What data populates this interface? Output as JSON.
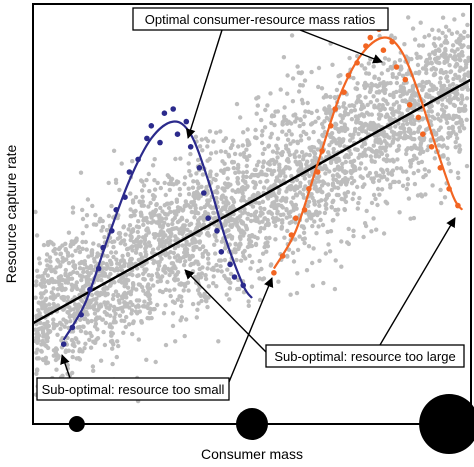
{
  "chart_data": {
    "type": "scatter",
    "title": "",
    "xlabel": "Consumer mass",
    "ylabel": "Resource capture rate",
    "xlim": [
      0,
      10
    ],
    "ylim": [
      0,
      10
    ],
    "axis_ticks": false,
    "grid": false,
    "legend": "none",
    "background_cloud": {
      "color": "#bdbdbd",
      "description_points": 3200,
      "trend": {
        "slope": 0.58,
        "intercept": 2.4,
        "spread": 1.6
      }
    },
    "trend_line": {
      "color": "#000000",
      "points": [
        [
          0,
          2.4
        ],
        [
          10,
          8.2
        ]
      ]
    },
    "series": [
      {
        "color": "#2b2a8c",
        "curve": [
          [
            0.7,
            2.0
          ],
          [
            1.2,
            2.9
          ],
          [
            1.7,
            4.4
          ],
          [
            2.2,
            5.8
          ],
          [
            2.7,
            6.8
          ],
          [
            3.2,
            7.2
          ],
          [
            3.6,
            6.9
          ],
          [
            4.0,
            5.8
          ],
          [
            4.4,
            4.4
          ],
          [
            4.8,
            3.3
          ],
          [
            5.0,
            3.0
          ]
        ],
        "points": [
          [
            0.7,
            1.9
          ],
          [
            0.9,
            2.3
          ],
          [
            1.1,
            2.6
          ],
          [
            1.3,
            3.2
          ],
          [
            1.5,
            3.7
          ],
          [
            1.6,
            4.2
          ],
          [
            1.8,
            4.6
          ],
          [
            1.9,
            5.1
          ],
          [
            2.1,
            5.4
          ],
          [
            2.2,
            6.0
          ],
          [
            2.4,
            6.3
          ],
          [
            2.6,
            6.8
          ],
          [
            2.7,
            7.1
          ],
          [
            2.9,
            6.7
          ],
          [
            3.0,
            7.4
          ],
          [
            3.2,
            7.5
          ],
          [
            3.3,
            6.9
          ],
          [
            3.5,
            7.2
          ],
          [
            3.6,
            6.6
          ],
          [
            3.8,
            6.1
          ],
          [
            3.9,
            5.5
          ],
          [
            4.0,
            4.9
          ],
          [
            4.2,
            4.6
          ],
          [
            4.3,
            4.1
          ],
          [
            4.5,
            3.8
          ],
          [
            4.6,
            3.5
          ],
          [
            4.8,
            3.3
          ]
        ]
      },
      {
        "color": "#f26522",
        "curve": [
          [
            5.5,
            3.7
          ],
          [
            6.0,
            4.6
          ],
          [
            6.5,
            6.2
          ],
          [
            7.0,
            7.8
          ],
          [
            7.5,
            8.8
          ],
          [
            8.0,
            9.2
          ],
          [
            8.4,
            8.9
          ],
          [
            8.8,
            7.9
          ],
          [
            9.2,
            6.6
          ],
          [
            9.6,
            5.4
          ],
          [
            9.8,
            5.1
          ]
        ],
        "points": [
          [
            5.5,
            3.6
          ],
          [
            5.7,
            4.0
          ],
          [
            5.9,
            4.5
          ],
          [
            6.0,
            4.9
          ],
          [
            6.2,
            5.1
          ],
          [
            6.3,
            5.6
          ],
          [
            6.5,
            6.0
          ],
          [
            6.6,
            6.5
          ],
          [
            6.8,
            7.1
          ],
          [
            6.9,
            7.5
          ],
          [
            7.1,
            7.9
          ],
          [
            7.2,
            8.3
          ],
          [
            7.4,
            8.6
          ],
          [
            7.6,
            9.0
          ],
          [
            7.7,
            9.2
          ],
          [
            7.9,
            9.4
          ],
          [
            8.0,
            8.9
          ],
          [
            8.2,
            9.1
          ],
          [
            8.3,
            8.5
          ],
          [
            8.5,
            8.2
          ],
          [
            8.6,
            7.6
          ],
          [
            8.8,
            7.3
          ],
          [
            8.9,
            6.9
          ],
          [
            9.1,
            6.6
          ],
          [
            9.3,
            6.1
          ],
          [
            9.5,
            5.6
          ],
          [
            9.7,
            5.2
          ]
        ]
      }
    ],
    "annotations": [
      {
        "text": "Optimal consumer-resource mass ratios"
      },
      {
        "text": "Sub-optimal: resource too large"
      },
      {
        "text": "Sub-optimal: resource too small"
      }
    ],
    "size_markers": [
      {
        "x": 1.0,
        "relative_size": 1
      },
      {
        "x": 5.0,
        "relative_size": 2
      },
      {
        "x": 9.5,
        "relative_size": 4
      }
    ]
  }
}
